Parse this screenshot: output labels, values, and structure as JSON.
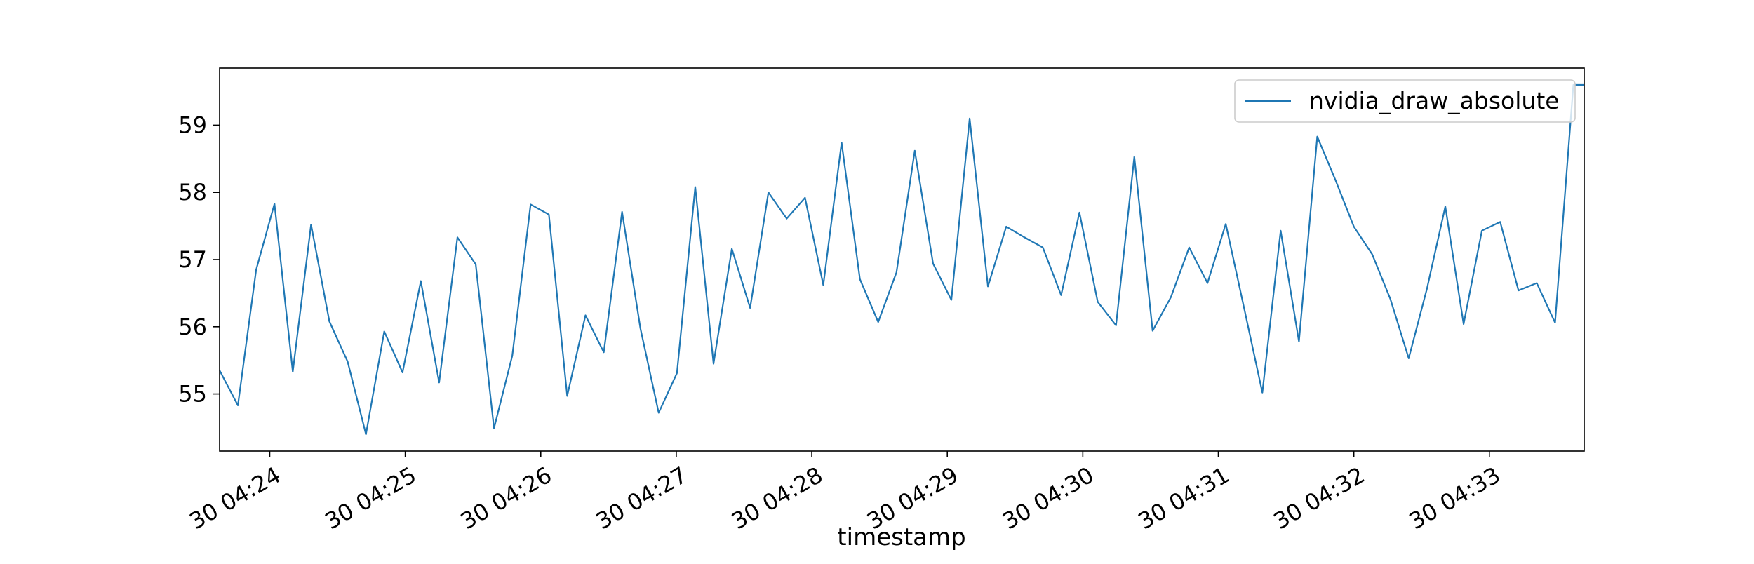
{
  "chart_data": {
    "type": "line",
    "title": "",
    "xlabel": "timestamp",
    "ylabel": "",
    "x_tick_labels": [
      "30 04:24",
      "30 04:25",
      "30 04:26",
      "30 04:27",
      "30 04:28",
      "30 04:29",
      "30 04:30",
      "30 04:31",
      "30 04:32",
      "30 04:33"
    ],
    "x_tick_minutes": [
      24,
      25,
      26,
      27,
      28,
      29,
      30,
      31,
      32,
      33
    ],
    "y_ticks": [
      55,
      56,
      57,
      58,
      59
    ],
    "xlim_minutes": [
      23.63,
      33.7
    ],
    "ylim": [
      54.15,
      59.85
    ],
    "grid": false,
    "legend_position": "upper right",
    "series": [
      {
        "name": "nvidia_draw_absolute",
        "color": "#1f77b4",
        "x_minutes": [
          23.63,
          23.765,
          23.9,
          24.035,
          24.17,
          24.305,
          24.44,
          24.575,
          24.71,
          24.845,
          24.98,
          25.115,
          25.25,
          25.385,
          25.52,
          25.655,
          25.79,
          25.925,
          26.06,
          26.195,
          26.33,
          26.465,
          26.6,
          26.735,
          26.87,
          27.005,
          27.14,
          27.275,
          27.41,
          27.545,
          27.68,
          27.815,
          27.95,
          28.085,
          28.22,
          28.355,
          28.49,
          28.625,
          28.76,
          28.895,
          29.03,
          29.165,
          29.3,
          29.435,
          29.57,
          29.705,
          29.84,
          29.975,
          30.11,
          30.245,
          30.38,
          30.515,
          30.65,
          30.785,
          30.92,
          31.055,
          31.19,
          31.325,
          31.46,
          31.595,
          31.73,
          31.865,
          32.0,
          32.135,
          32.27,
          32.405,
          32.54,
          32.675,
          32.81,
          32.945,
          33.08,
          33.215,
          33.35,
          33.485,
          33.62,
          33.7
        ],
        "values": [
          55.35,
          54.83,
          56.85,
          57.83,
          55.33,
          57.52,
          56.08,
          55.48,
          54.4,
          55.93,
          55.32,
          56.68,
          55.17,
          57.33,
          56.93,
          54.49,
          55.57,
          57.82,
          57.67,
          54.97,
          56.17,
          55.62,
          57.71,
          55.98,
          54.72,
          55.31,
          58.08,
          55.45,
          57.16,
          56.28,
          58.0,
          57.61,
          57.92,
          56.62,
          58.74,
          56.71,
          56.07,
          56.81,
          58.62,
          56.94,
          56.4,
          59.1,
          56.6,
          57.49,
          57.33,
          57.18,
          56.47,
          57.7,
          56.37,
          56.02,
          58.53,
          55.94,
          56.44,
          57.18,
          56.65,
          57.53,
          56.28,
          55.02,
          57.43,
          55.78,
          58.83,
          58.18,
          57.49,
          57.08,
          56.41,
          55.53,
          56.57,
          57.79,
          56.04,
          57.43,
          57.56,
          56.54,
          56.65,
          56.06,
          59.6,
          59.6
        ]
      }
    ]
  }
}
